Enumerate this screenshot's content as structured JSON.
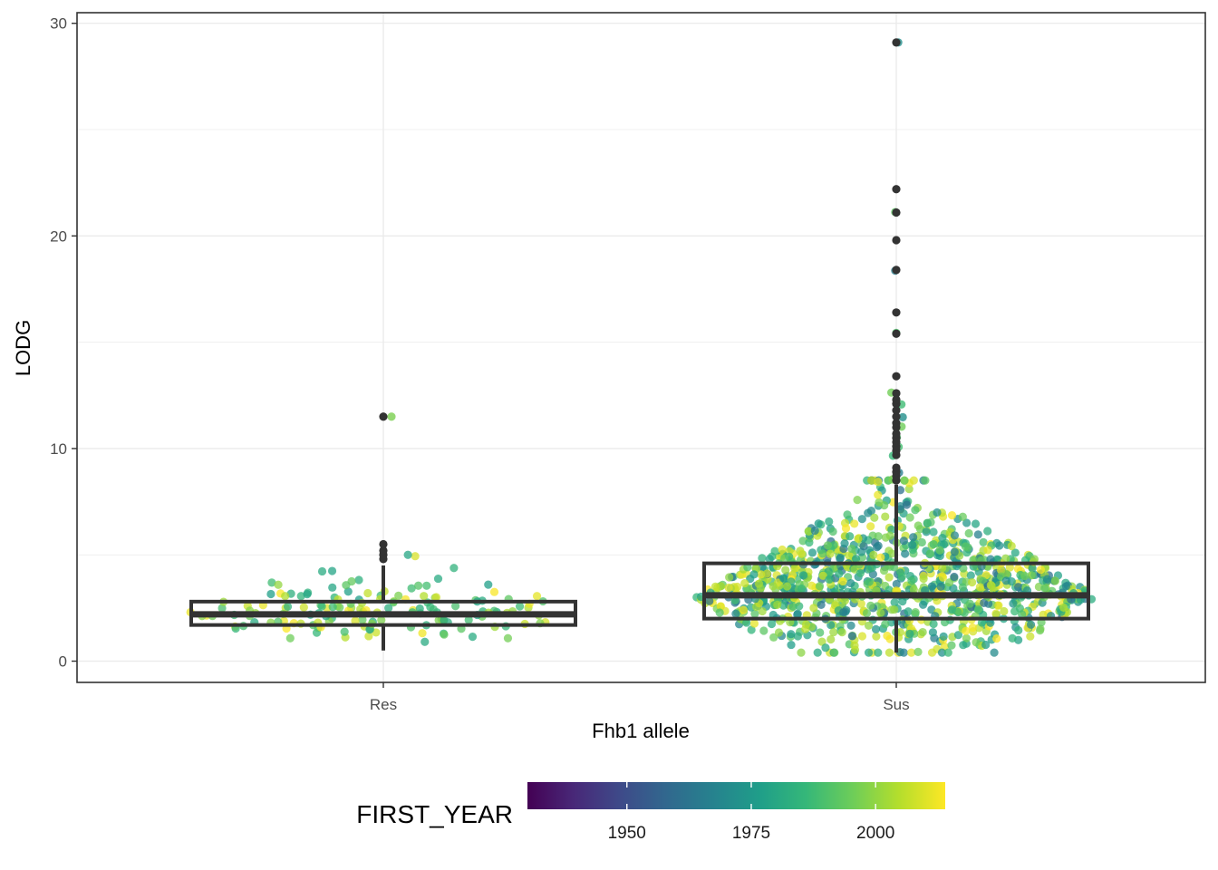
{
  "chart_data": {
    "type": "boxplot_jitter",
    "xlabel": "Fhb1 allele",
    "ylabel": "LODG",
    "categories": [
      "Res",
      "Sus"
    ],
    "ylim": [
      -1,
      30.5
    ],
    "yticks": [
      0,
      10,
      20,
      30
    ],
    "grid": true,
    "boxes": [
      {
        "category": "Res",
        "whisker_low": 0.5,
        "q1": 1.7,
        "median": 2.2,
        "q3": 2.8,
        "whisker_high": 4.5,
        "outliers": [
          4.8,
          5.0,
          5.2,
          5.5,
          11.5
        ]
      },
      {
        "category": "Sus",
        "whisker_low": 0.4,
        "q1": 2.0,
        "median": 3.1,
        "q3": 4.6,
        "whisker_high": 8.3,
        "outliers": [
          8.5,
          8.7,
          8.9,
          9.1,
          9.7,
          9.9,
          10.1,
          10.3,
          10.5,
          10.7,
          11.0,
          11.2,
          11.5,
          11.8,
          12.1,
          12.3,
          12.6,
          13.4,
          15.4,
          16.4,
          18.4,
          19.8,
          21.1,
          22.2,
          29.1
        ]
      }
    ],
    "points": {
      "Res": {
        "n": 150,
        "min": 0.5,
        "max": 5.0,
        "center": 2.3
      },
      "Sus": {
        "n": 1000,
        "min": 0.4,
        "max": 8.5,
        "center": 3.0
      }
    },
    "colorbar": {
      "title": "FIRST_YEAR",
      "range": [
        1930,
        2014
      ],
      "ticks": [
        1950,
        1975,
        2000
      ],
      "palette": [
        "#440154",
        "#482878",
        "#3E4A89",
        "#31688E",
        "#26828E",
        "#1F9E89",
        "#35B779",
        "#6DCD59",
        "#B4DE2C",
        "#FDE725"
      ]
    },
    "legend_position": "bottom"
  }
}
